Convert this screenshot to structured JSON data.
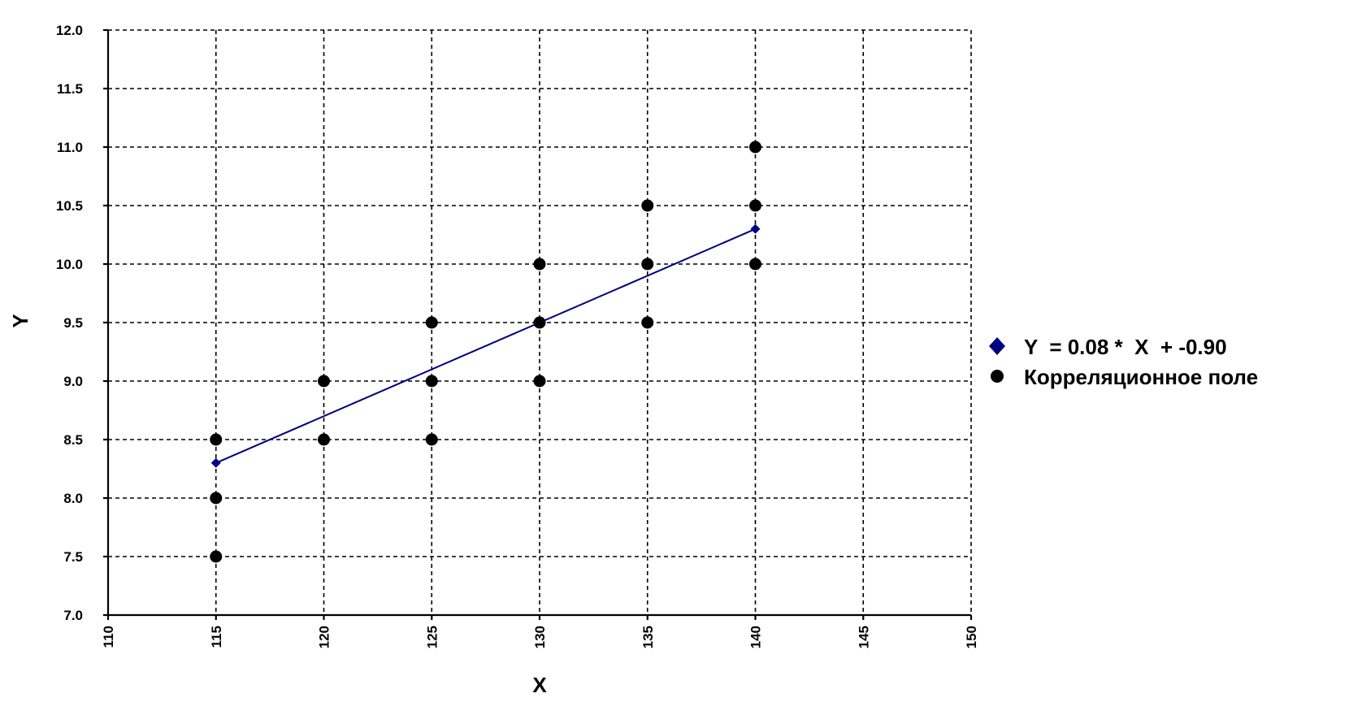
{
  "chart_data": {
    "type": "scatter",
    "title": "",
    "xlabel": "X",
    "ylabel": "Y",
    "xlim": [
      110,
      150
    ],
    "ylim": [
      7.0,
      12.0
    ],
    "x_ticks": [
      "110",
      "115",
      "120",
      "125",
      "130",
      "135",
      "140",
      "145",
      "150"
    ],
    "y_ticks": [
      "7.0",
      "7.5",
      "8.0",
      "8.5",
      "9.0",
      "9.5",
      "10.0",
      "10.5",
      "11.0",
      "11.5",
      "12.0"
    ],
    "grid": true,
    "legend_position": "right",
    "series": [
      {
        "name": "Y  = 0.08 *  X  + -0.90",
        "type": "line",
        "color": "#000080",
        "marker": "diamond",
        "points": [
          [
            115,
            8.3
          ],
          [
            140,
            10.3
          ]
        ]
      },
      {
        "name": "Корреляционное поле",
        "type": "scatter",
        "color": "#000000",
        "marker": "circle",
        "points": [
          [
            115,
            7.5
          ],
          [
            115,
            8.0
          ],
          [
            115,
            8.5
          ],
          [
            120,
            8.5
          ],
          [
            120,
            9.0
          ],
          [
            125,
            8.5
          ],
          [
            125,
            9.0
          ],
          [
            125,
            9.5
          ],
          [
            130,
            9.0
          ],
          [
            130,
            9.5
          ],
          [
            130,
            10.0
          ],
          [
            135,
            9.5
          ],
          [
            135,
            10.0
          ],
          [
            135,
            10.5
          ],
          [
            140,
            10.0
          ],
          [
            140,
            10.5
          ],
          [
            140,
            11.0
          ]
        ]
      }
    ]
  }
}
